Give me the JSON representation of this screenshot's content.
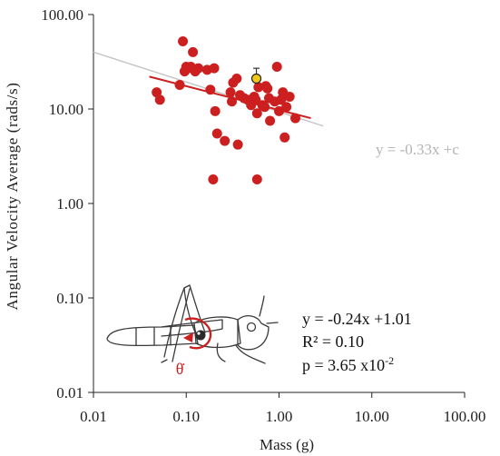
{
  "chart_data": {
    "type": "scatter",
    "title": "",
    "xlabel": "Mass (g)",
    "ylabel": "Angular Velocity Average (rads/s)",
    "xscale": "log",
    "yscale": "log",
    "xlim": [
      0.01,
      100
    ],
    "ylim": [
      0.01,
      100
    ],
    "grid": false,
    "x_ticks": [
      0.01,
      0.1,
      1,
      10,
      100
    ],
    "x_tick_labels": [
      "0.01",
      "0.10",
      "1.00",
      "10.00",
      "100.00"
    ],
    "y_ticks": [
      0.01,
      0.1,
      1,
      10,
      100
    ],
    "y_tick_labels": [
      "0.01",
      "0.10",
      "1.00",
      "10.00",
      "100.00"
    ],
    "series": [
      {
        "kind": "points",
        "color": "#cc1f1f",
        "points": [
          [
            0.048,
            15.0
          ],
          [
            0.052,
            12.5
          ],
          [
            0.085,
            18.0
          ],
          [
            0.092,
            52.0
          ],
          [
            0.096,
            25.0
          ],
          [
            0.1,
            28.0
          ],
          [
            0.105,
            27.0
          ],
          [
            0.112,
            28.0
          ],
          [
            0.118,
            40.0
          ],
          [
            0.125,
            25.0
          ],
          [
            0.135,
            27.0
          ],
          [
            0.168,
            26.0
          ],
          [
            0.182,
            16.0
          ],
          [
            0.2,
            27.0
          ],
          [
            0.205,
            9.5
          ],
          [
            0.215,
            5.5
          ],
          [
            0.26,
            4.6
          ],
          [
            0.3,
            15.0
          ],
          [
            0.31,
            12.0
          ],
          [
            0.32,
            19.0
          ],
          [
            0.35,
            21.0
          ],
          [
            0.36,
            4.2
          ],
          [
            0.38,
            14.0
          ],
          [
            0.42,
            13.0
          ],
          [
            0.46,
            12.5
          ],
          [
            0.5,
            11.0
          ],
          [
            0.54,
            13.5
          ],
          [
            0.56,
            12.5
          ],
          [
            0.58,
            9.0
          ],
          [
            0.6,
            17.0
          ],
          [
            0.66,
            11.0
          ],
          [
            0.7,
            10.5
          ],
          [
            0.72,
            17.5
          ],
          [
            0.75,
            16.5
          ],
          [
            0.78,
            13.0
          ],
          [
            0.8,
            7.5
          ],
          [
            0.9,
            12.0
          ],
          [
            0.95,
            28.0
          ],
          [
            1.0,
            9.5
          ],
          [
            1.05,
            12.5
          ],
          [
            1.1,
            15.0
          ],
          [
            1.15,
            5.0
          ],
          [
            1.2,
            10.5
          ],
          [
            1.3,
            13.5
          ],
          [
            1.5,
            8.0
          ],
          [
            0.195,
            1.8
          ],
          [
            0.58,
            1.8
          ]
        ]
      },
      {
        "kind": "highlight-point",
        "color": "#f2c81b",
        "points": [
          [
            0.57,
            21.0
          ]
        ],
        "error_high": 27.0
      }
    ],
    "fits": [
      {
        "label": "",
        "color": "#cc1f1f",
        "x": [
          0.04,
          2.2
        ],
        "y": [
          22.0,
          8.0
        ]
      },
      {
        "label": "y = -0.33x +c",
        "color": "#c4c4c4",
        "x": [
          0.01,
          3.0
        ],
        "y": [
          40.0,
          6.6
        ]
      }
    ],
    "annotations": {
      "fit_equation": "y = -0.24x +1.01",
      "r_squared": "R² = 0.10",
      "p_value_base": "p = 3.65 x10",
      "p_value_exponent": "-2",
      "theta_dot": "θ̇"
    }
  }
}
